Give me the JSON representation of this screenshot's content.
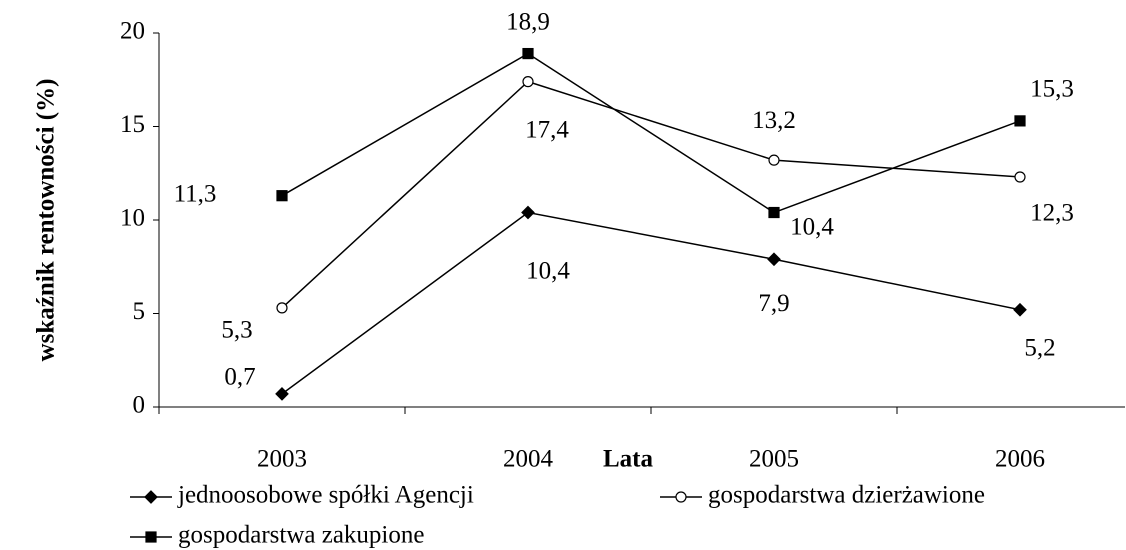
{
  "chart_data": {
    "type": "line",
    "y_axis_label": "wskaźnik rentowności (%)",
    "x_axis_label": "Lata",
    "categories": [
      "2003",
      "2004",
      "2005",
      "2006"
    ],
    "ylim": [
      0,
      20
    ],
    "yticks": [
      0,
      5,
      10,
      15,
      20
    ],
    "series": [
      {
        "name": "jednoosobowe spółki Agencji",
        "color": "#000000",
        "marker": "diamond",
        "values": [
          0.7,
          10.4,
          7.9,
          5.2
        ],
        "value_labels": [
          "0,7",
          "10,4",
          "7,9",
          "5,2"
        ]
      },
      {
        "name": "gospodarstwa dzierżawione",
        "color": "#000000",
        "marker": "circle",
        "values": [
          5.3,
          17.4,
          13.2,
          12.3
        ],
        "value_labels": [
          "5,3",
          "17,4",
          "13,2",
          "12,3"
        ]
      },
      {
        "name": "gospodarstwa zakupione",
        "color": "#000000",
        "marker": "square",
        "values": [
          11.3,
          18.9,
          10.4,
          15.3
        ],
        "value_labels": [
          "11,3",
          "18,9",
          "10,4",
          "15,3"
        ]
      }
    ]
  }
}
